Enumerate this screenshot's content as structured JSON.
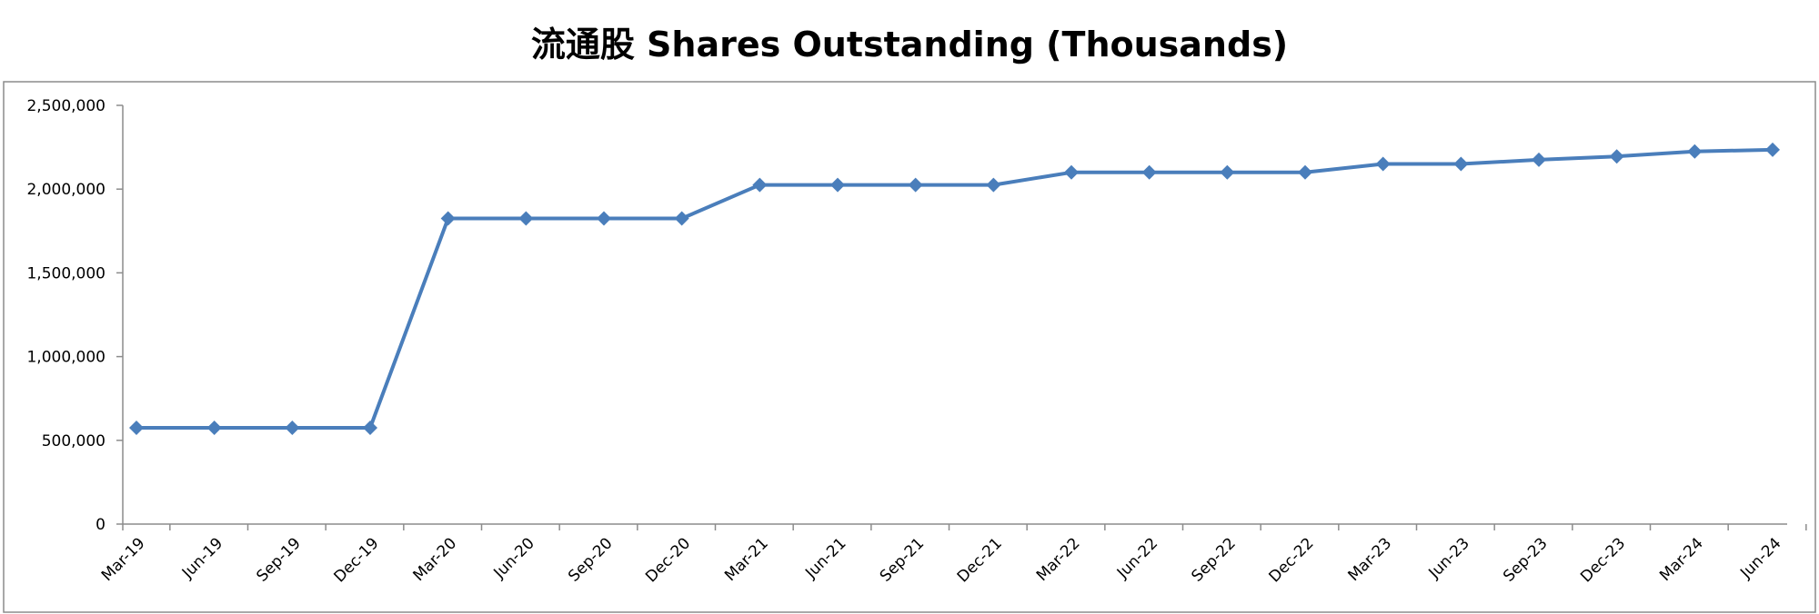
{
  "chart_data": {
    "type": "line",
    "title": "流通股 Shares Outstanding (Thousands)",
    "xlabel": "",
    "ylabel": "",
    "categories": [
      "Mar-19",
      "Jun-19",
      "Sep-19",
      "Dec-19",
      "Mar-20",
      "Jun-20",
      "Sep-20",
      "Dec-20",
      "Mar-21",
      "Jun-21",
      "Sep-21",
      "Dec-21",
      "Mar-22",
      "Jun-22",
      "Sep-22",
      "Dec-22",
      "Mar-23",
      "Jun-23",
      "Sep-23",
      "Dec-23",
      "Mar-24",
      "Jun-24"
    ],
    "series": [
      {
        "values": [
          575000,
          575000,
          575000,
          575000,
          1825000,
          1825000,
          1825000,
          1825000,
          2025000,
          2025000,
          2025000,
          2025000,
          2100000,
          2100000,
          2100000,
          2100000,
          2150000,
          2150000,
          2175000,
          2195000,
          2225000,
          2235000
        ]
      }
    ],
    "ylim": [
      0,
      2500000
    ],
    "yticks": [
      "0",
      "500,000",
      "1,000,000",
      "1,500,000",
      "2,000,000",
      "2,500,000"
    ],
    "ytick_values": [
      0,
      500000,
      1000000,
      1500000,
      2000000,
      2500000
    ],
    "grid": false,
    "legend": "none",
    "line_color": "#4a7ebb",
    "marker": "diamond"
  }
}
